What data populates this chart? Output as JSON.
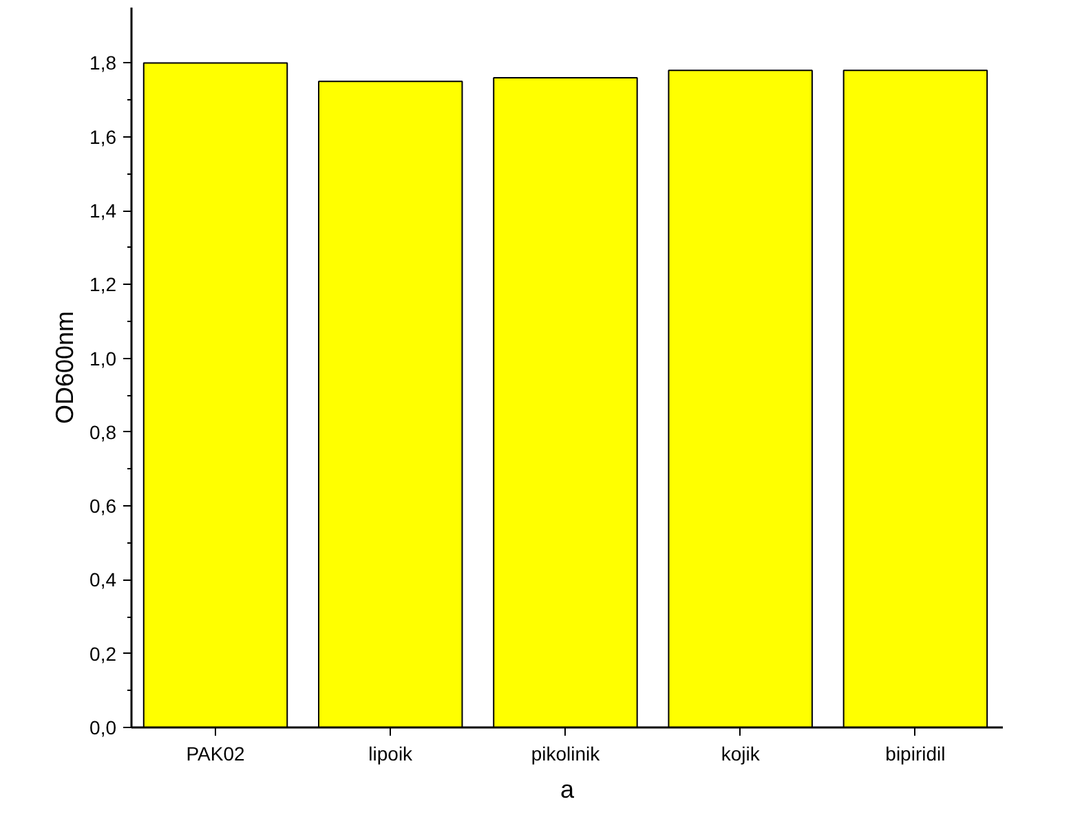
{
  "chart_data": {
    "type": "bar",
    "xlabel": "a",
    "ylabel": "OD600nm",
    "categories": [
      "PAK02",
      "lipoik",
      "pikolinik",
      "kojik",
      "bipiridil"
    ],
    "values": [
      1.8,
      1.75,
      1.76,
      1.78,
      1.78
    ],
    "color": "#ffff00",
    "ylim": [
      0,
      1.95
    ],
    "yticks": [
      {
        "value": 0,
        "label": "0,0"
      },
      {
        "value": 0.2,
        "label": "0,2"
      },
      {
        "value": 0.4,
        "label": "0,4"
      },
      {
        "value": 0.6,
        "label": "0,6"
      },
      {
        "value": 0.8,
        "label": "0,8"
      },
      {
        "value": 1.0,
        "label": "1,0"
      },
      {
        "value": 1.2,
        "label": "1,2"
      },
      {
        "value": 1.4,
        "label": "1,4"
      },
      {
        "value": 1.6,
        "label": "1,6"
      },
      {
        "value": 1.8,
        "label": "1,8"
      }
    ],
    "grid": false
  }
}
